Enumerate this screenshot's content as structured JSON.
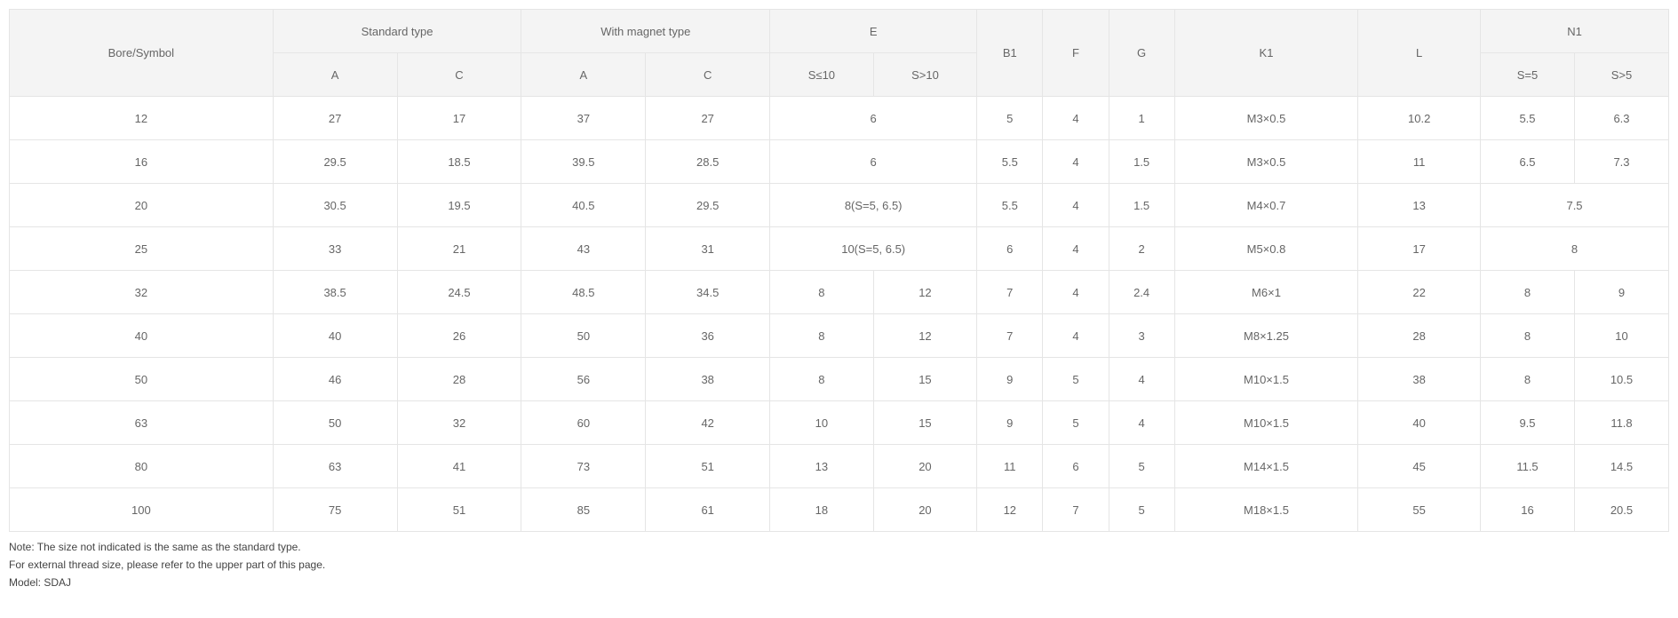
{
  "table": {
    "header": {
      "bore": "Bore/Symbol",
      "standard": "Standard type",
      "magnet": "With magnet type",
      "e": "E",
      "b1": "B1",
      "f": "F",
      "g": "G",
      "k1": "K1",
      "l": "L",
      "n1": "N1",
      "sub_a1": "A",
      "sub_c1": "C",
      "sub_a2": "A",
      "sub_c2": "C",
      "sub_e1": "S≤10",
      "sub_e2": "S>10",
      "sub_n1a": "S=5",
      "sub_n1b": "S>5"
    },
    "rows": [
      {
        "bore": "12",
        "a1": "27",
        "c1": "17",
        "a2": "37",
        "c2": "27",
        "e_merge": "6",
        "b1": "5",
        "f": "4",
        "g": "1",
        "k1": "M3×0.5",
        "l": "10.2",
        "n1a": "5.5",
        "n1b": "6.3"
      },
      {
        "bore": "16",
        "a1": "29.5",
        "c1": "18.5",
        "a2": "39.5",
        "c2": "28.5",
        "e_merge": "6",
        "b1": "5.5",
        "f": "4",
        "g": "1.5",
        "k1": "M3×0.5",
        "l": "11",
        "n1a": "6.5",
        "n1b": "7.3"
      },
      {
        "bore": "20",
        "a1": "30.5",
        "c1": "19.5",
        "a2": "40.5",
        "c2": "29.5",
        "e_merge": "8(S=5, 6.5)",
        "b1": "5.5",
        "f": "4",
        "g": "1.5",
        "k1": "M4×0.7",
        "l": "13",
        "n1_merge": "7.5"
      },
      {
        "bore": "25",
        "a1": "33",
        "c1": "21",
        "a2": "43",
        "c2": "31",
        "e_merge": "10(S=5, 6.5)",
        "b1": "6",
        "f": "4",
        "g": "2",
        "k1": "M5×0.8",
        "l": "17",
        "n1_merge": "8"
      },
      {
        "bore": "32",
        "a1": "38.5",
        "c1": "24.5",
        "a2": "48.5",
        "c2": "34.5",
        "e1": "8",
        "e2": "12",
        "b1": "7",
        "f": "4",
        "g": "2.4",
        "k1": "M6×1",
        "l": "22",
        "n1a": "8",
        "n1b": "9"
      },
      {
        "bore": "40",
        "a1": "40",
        "c1": "26",
        "a2": "50",
        "c2": "36",
        "e1": "8",
        "e2": "12",
        "b1": "7",
        "f": "4",
        "g": "3",
        "k1": "M8×1.25",
        "l": "28",
        "n1a": "8",
        "n1b": "10"
      },
      {
        "bore": "50",
        "a1": "46",
        "c1": "28",
        "a2": "56",
        "c2": "38",
        "e1": "8",
        "e2": "15",
        "b1": "9",
        "f": "5",
        "g": "4",
        "k1": "M10×1.5",
        "l": "38",
        "n1a": "8",
        "n1b": "10.5"
      },
      {
        "bore": "63",
        "a1": "50",
        "c1": "32",
        "a2": "60",
        "c2": "42",
        "e1": "10",
        "e2": "15",
        "b1": "9",
        "f": "5",
        "g": "4",
        "k1": "M10×1.5",
        "l": "40",
        "n1a": "9.5",
        "n1b": "11.8"
      },
      {
        "bore": "80",
        "a1": "63",
        "c1": "41",
        "a2": "73",
        "c2": "51",
        "e1": "13",
        "e2": "20",
        "b1": "11",
        "f": "6",
        "g": "5",
        "k1": "M14×1.5",
        "l": "45",
        "n1a": "11.5",
        "n1b": "14.5"
      },
      {
        "bore": "100",
        "a1": "75",
        "c1": "51",
        "a2": "85",
        "c2": "61",
        "e1": "18",
        "e2": "20",
        "b1": "12",
        "f": "7",
        "g": "5",
        "k1": "M18×1.5",
        "l": "55",
        "n1a": "16",
        "n1b": "20.5"
      }
    ]
  },
  "notes": {
    "line1": "Note: The size not indicated is the same as the standard type.",
    "line2": "For external thread size, please refer to the upper part of this page.",
    "line3": "Model: SDAJ"
  }
}
